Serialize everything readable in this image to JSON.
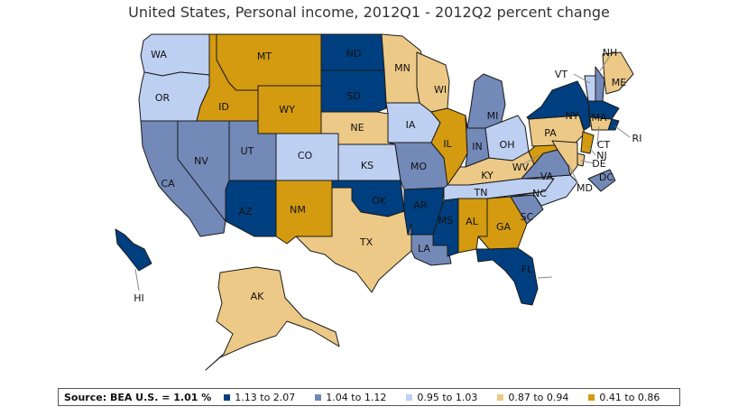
{
  "title": "United States, Personal income, 2012Q1 - 2012Q2 percent change",
  "legend": {
    "source_label": "Source: BEA U.S. = 1.01 %",
    "classes": [
      {
        "label": "1.13 to 2.07",
        "color": "#003f7f"
      },
      {
        "label": "1.04 to 1.12",
        "color": "#7389b8"
      },
      {
        "label": "0.95 to 1.03",
        "color": "#bdd0f2"
      },
      {
        "label": "0.87 to 0.94",
        "color": "#edc987"
      },
      {
        "label": "0.41 to 0.86",
        "color": "#d49b10"
      }
    ]
  },
  "states": [
    {
      "abbr": "WA",
      "class": 2
    },
    {
      "abbr": "OR",
      "class": 2
    },
    {
      "abbr": "CA",
      "class": 1
    },
    {
      "abbr": "NV",
      "class": 1
    },
    {
      "abbr": "ID",
      "class": 4
    },
    {
      "abbr": "MT",
      "class": 4
    },
    {
      "abbr": "WY",
      "class": 4
    },
    {
      "abbr": "UT",
      "class": 1
    },
    {
      "abbr": "AZ",
      "class": 0
    },
    {
      "abbr": "CO",
      "class": 2
    },
    {
      "abbr": "NM",
      "class": 4
    },
    {
      "abbr": "ND",
      "class": 0
    },
    {
      "abbr": "SD",
      "class": 0
    },
    {
      "abbr": "NE",
      "class": 3
    },
    {
      "abbr": "KS",
      "class": 2
    },
    {
      "abbr": "OK",
      "class": 0
    },
    {
      "abbr": "TX",
      "class": 3
    },
    {
      "abbr": "MN",
      "class": 3
    },
    {
      "abbr": "IA",
      "class": 2
    },
    {
      "abbr": "MO",
      "class": 1
    },
    {
      "abbr": "AR",
      "class": 0
    },
    {
      "abbr": "LA",
      "class": 1
    },
    {
      "abbr": "WI",
      "class": 3
    },
    {
      "abbr": "IL",
      "class": 4
    },
    {
      "abbr": "MI",
      "class": 1
    },
    {
      "abbr": "IN",
      "class": 1
    },
    {
      "abbr": "OH",
      "class": 2
    },
    {
      "abbr": "KY",
      "class": 3
    },
    {
      "abbr": "TN",
      "class": 2
    },
    {
      "abbr": "MS",
      "class": 0
    },
    {
      "abbr": "AL",
      "class": 4
    },
    {
      "abbr": "GA",
      "class": 4
    },
    {
      "abbr": "FL",
      "class": 0
    },
    {
      "abbr": "SC",
      "class": 1
    },
    {
      "abbr": "NC",
      "class": 2
    },
    {
      "abbr": "VA",
      "class": 1
    },
    {
      "abbr": "WV",
      "class": 4
    },
    {
      "abbr": "PA",
      "class": 3
    },
    {
      "abbr": "NY",
      "class": 0
    },
    {
      "abbr": "VT",
      "class": 2
    },
    {
      "abbr": "NH",
      "class": 1
    },
    {
      "abbr": "ME",
      "class": 3
    },
    {
      "abbr": "MA",
      "class": 0
    },
    {
      "abbr": "RI",
      "class": 0
    },
    {
      "abbr": "CT",
      "class": 3
    },
    {
      "abbr": "NJ",
      "class": 4
    },
    {
      "abbr": "DE",
      "class": 3
    },
    {
      "abbr": "MD",
      "class": 3
    },
    {
      "abbr": "DC",
      "class": 1
    },
    {
      "abbr": "AK",
      "class": 3
    },
    {
      "abbr": "HI",
      "class": 0
    }
  ]
}
